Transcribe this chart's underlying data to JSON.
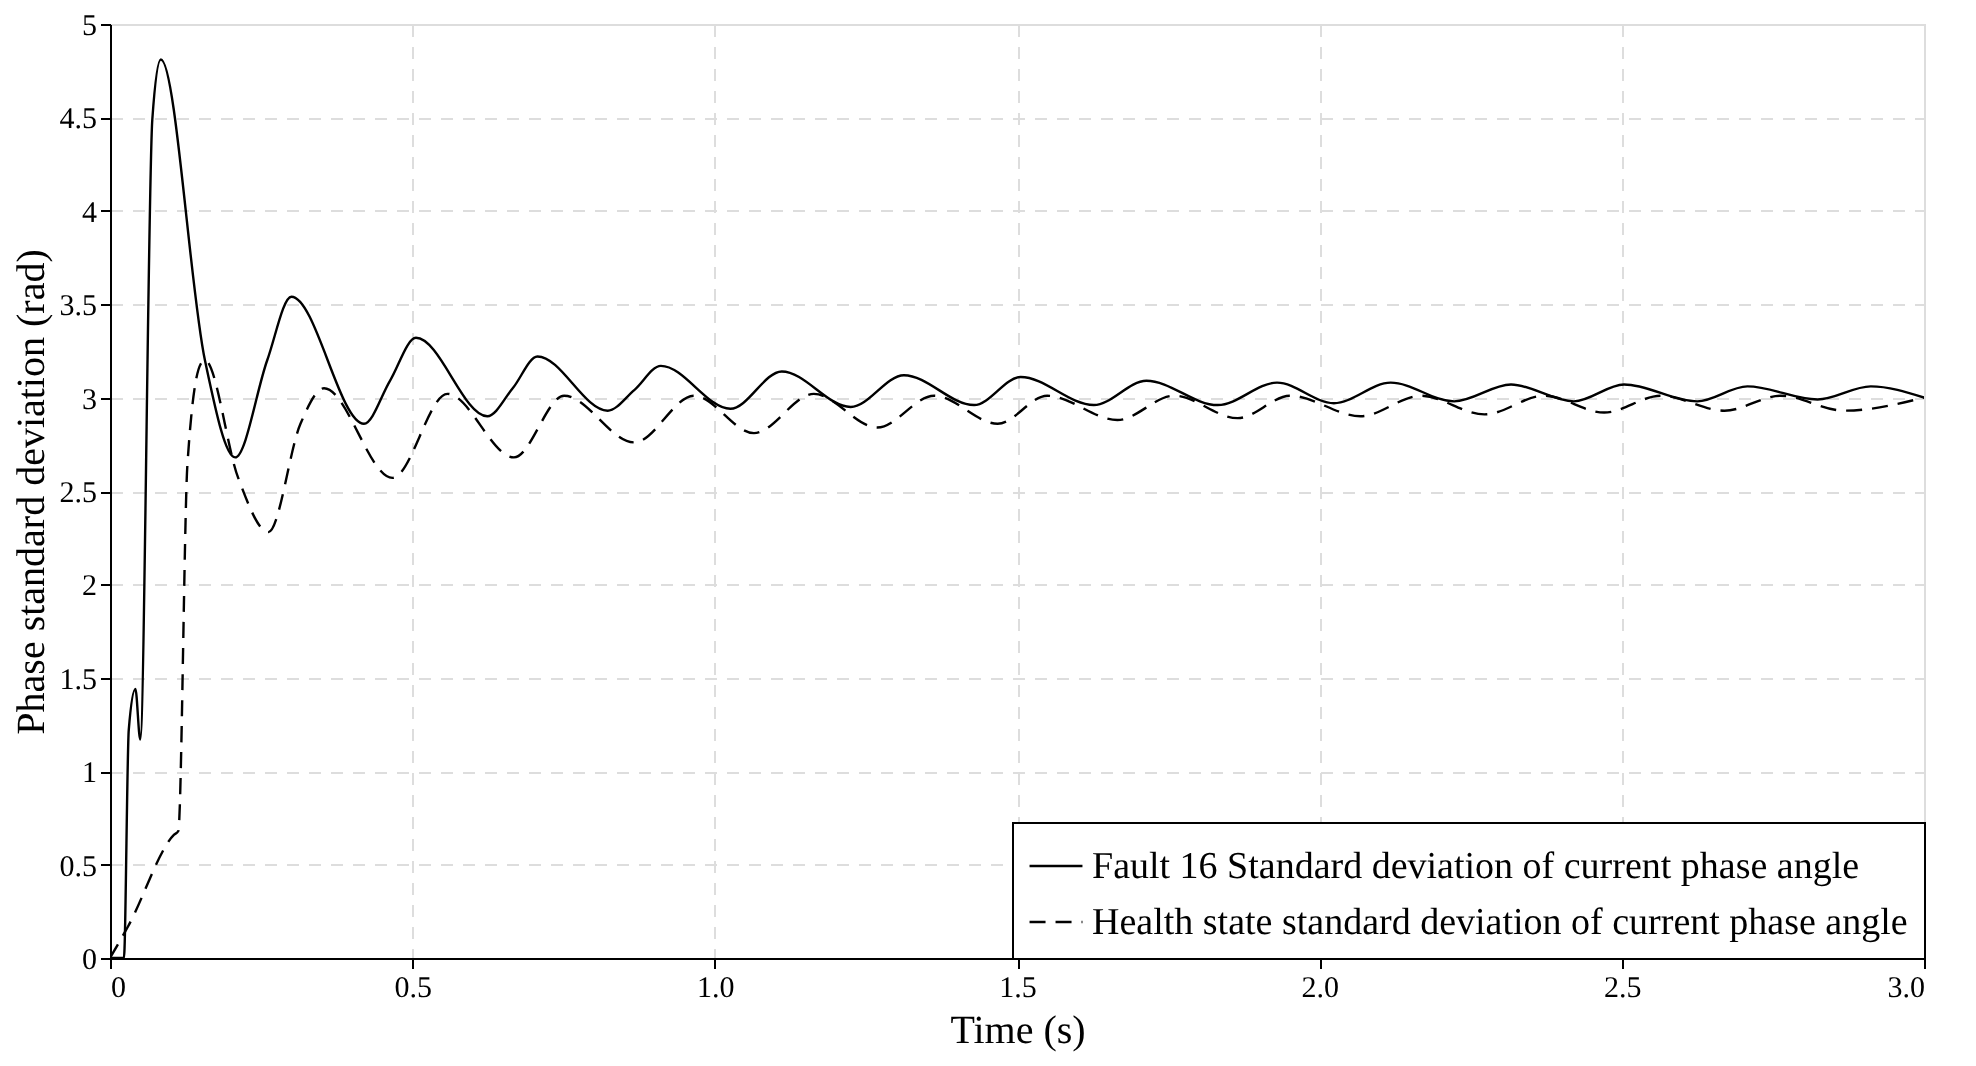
{
  "chart_data": {
    "type": "line",
    "xlabel": "Time (s)",
    "ylabel": "Phase standard deviation (rad)",
    "xlim": [
      0,
      3.0
    ],
    "ylim": [
      0,
      5
    ],
    "xticks": [
      0,
      0.5,
      {
        "value": 1,
        "label": "1.0"
      },
      1.5,
      {
        "value": 2,
        "label": "2.0"
      },
      2.5,
      {
        "value": 3,
        "label": "3.0"
      }
    ],
    "yticks": [
      0,
      0.5,
      1,
      1.5,
      2,
      2.5,
      3,
      3.5,
      4,
      4.5,
      5
    ],
    "grid": true,
    "legend": "bottom right",
    "marker": "none",
    "series": [
      {
        "name": "Fault 16 Standard deviation of current phase angle",
        "color": "#000000",
        "line_style": "solid",
        "x": [
          0,
          0.023,
          0.031,
          0.042,
          0.05,
          0.07,
          0.084,
          0.157,
          0.207,
          0.26,
          0.3,
          0.42,
          0.463,
          0.506,
          0.624,
          0.666,
          0.707,
          0.823,
          0.867,
          0.911,
          1.026,
          1.111,
          1.225,
          1.313,
          1.429,
          1.506,
          1.627,
          1.714,
          1.832,
          1.93,
          2.024,
          2.118,
          2.223,
          2.317,
          2.421,
          2.504,
          2.625,
          2.708,
          2.824,
          2.912,
          3.0
        ],
        "values": [
          0,
          0,
          1.22,
          1.44,
          1.17,
          4.49,
          4.81,
          3.2,
          2.68,
          3.2,
          3.54,
          2.86,
          3.09,
          3.32,
          2.9,
          3.05,
          3.22,
          2.93,
          3.04,
          3.17,
          2.94,
          3.14,
          2.95,
          3.12,
          2.96,
          3.11,
          2.96,
          3.09,
          2.96,
          3.08,
          2.97,
          3.08,
          2.98,
          3.07,
          2.98,
          3.07,
          2.98,
          3.06,
          2.99,
          3.06,
          3.0
        ]
      },
      {
        "name": "Health state standard deviation of current phase angle",
        "color": "#000000",
        "line_style": "dashed",
        "x": [
          0,
          0.03,
          0.106,
          0.113,
          0.128,
          0.15,
          0.157,
          0.212,
          0.262,
          0.315,
          0.354,
          0.467,
          0.558,
          0.668,
          0.751,
          0.867,
          0.966,
          1.065,
          1.164,
          1.269,
          1.363,
          1.468,
          1.55,
          1.666,
          1.76,
          1.865,
          1.952,
          2.068,
          2.168,
          2.273,
          2.372,
          2.471,
          2.565,
          2.67,
          2.763,
          2.868,
          3.0
        ],
        "values": [
          0,
          0.17,
          0.66,
          0.68,
          2.64,
          3.18,
          3.2,
          2.57,
          2.28,
          2.86,
          3.05,
          2.57,
          3.02,
          2.68,
          3.01,
          2.76,
          3.01,
          2.81,
          3.02,
          2.84,
          3.01,
          2.86,
          3.01,
          2.88,
          3.01,
          2.89,
          3.01,
          2.9,
          3.01,
          2.91,
          3.01,
          2.92,
          3.01,
          2.93,
          3.01,
          2.93,
          3.0
        ]
      }
    ]
  }
}
